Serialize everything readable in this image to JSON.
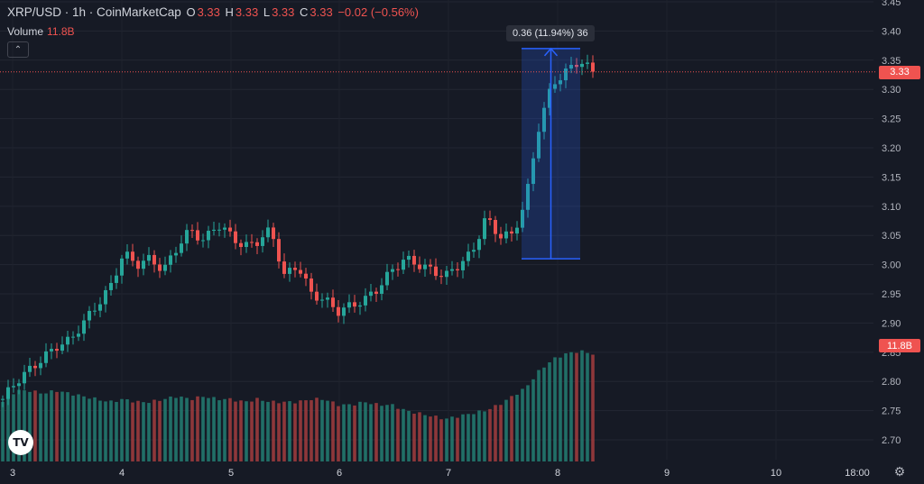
{
  "header": {
    "symbol": "XRP/USD · 1h · CoinMarketCap",
    "o_label": "O",
    "o_value": "3.33",
    "h_label": "H",
    "h_value": "3.33",
    "l_label": "L",
    "l_value": "3.33",
    "c_label": "C",
    "c_value": "3.33",
    "change": "−0.02 (−0.56%)"
  },
  "volume": {
    "label": "Volume",
    "value": "11.8B"
  },
  "measure_tooltip": "0.36 (11.94%) 36",
  "price_tag": "3.33",
  "volume_tag": "11.8B",
  "colors": {
    "up": "#26a69a",
    "down": "#ef5350",
    "background": "#161a25",
    "measure": "#2962ff"
  },
  "icons": {
    "logo": "tradingview-logo-icon",
    "settings": "gear-icon",
    "collapse": "chevron-up-icon"
  },
  "logo_text": "TV",
  "chart_data": {
    "type": "candlestick",
    "symbol": "XRP/USD",
    "interval": "1h",
    "ylim": [
      2.68,
      3.45
    ],
    "y_ticks": [
      "3.45",
      "3.40",
      "3.35",
      "3.30",
      "3.25",
      "3.20",
      "3.15",
      "3.10",
      "3.05",
      "3.00",
      "2.95",
      "2.90",
      "2.85",
      "2.80",
      "2.75",
      "2.70"
    ],
    "x_ticks": [
      "3",
      "4",
      "5",
      "6",
      "7",
      "8",
      "9",
      "10",
      "18:00"
    ],
    "grid": true,
    "close_series": [
      2.77,
      2.8,
      2.82,
      2.84,
      2.86,
      2.87,
      2.9,
      2.93,
      2.96,
      3.02,
      3.0,
      3.01,
      2.99,
      3.03,
      3.06,
      3.04,
      3.07,
      3.05,
      3.03,
      3.04,
      3.06,
      2.98,
      3.0,
      2.95,
      2.94,
      2.92,
      2.93,
      2.94,
      2.96,
      2.99,
      3.01,
      3.0,
      2.99,
      2.98,
      3.0,
      3.02,
      3.08,
      3.05,
      3.05,
      3.11,
      3.24,
      3.31,
      3.33,
      3.35,
      3.33
    ],
    "volume_series": [
      10.1,
      10.5,
      10.5,
      10.4,
      10.5,
      10.4,
      10.3,
      10.2,
      10.1,
      10.2,
      10.1,
      10.1,
      10.2,
      10.3,
      10.2,
      10.3,
      10.2,
      10.2,
      10.1,
      10.2,
      10.1,
      10.1,
      10.1,
      10.2,
      10.2,
      10.0,
      10.0,
      10.1,
      10.0,
      10.0,
      9.8,
      9.7,
      9.6,
      9.5,
      9.6,
      9.7,
      9.8,
      10.0,
      10.3,
      10.6,
      11.2,
      11.6,
      11.8,
      11.9,
      11.8
    ],
    "measure": {
      "from": 3.01,
      "to": 3.37,
      "change": 0.36,
      "percent": 11.94,
      "bars": 36
    },
    "last_price": 3.33,
    "last_volume": "11.8B"
  }
}
